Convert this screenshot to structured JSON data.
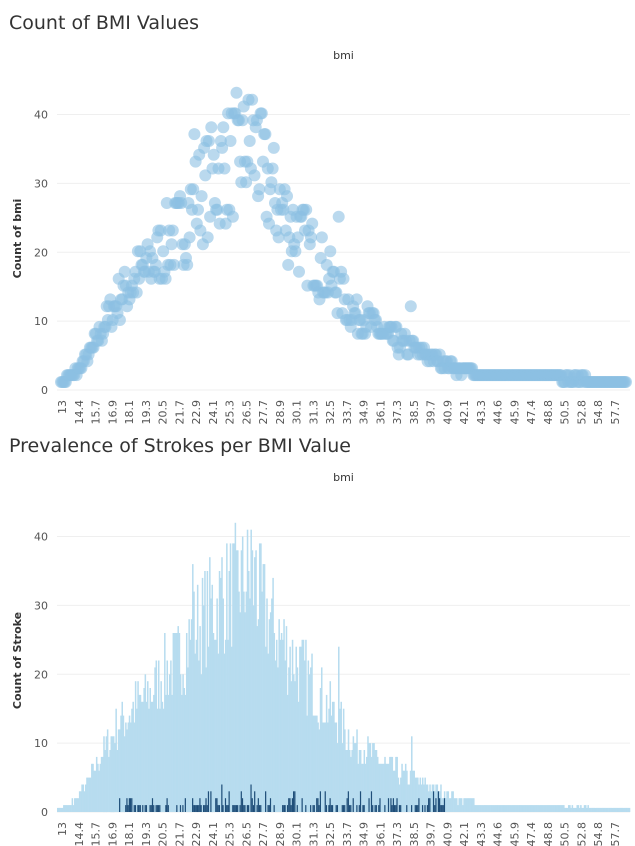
{
  "colors": {
    "dot": "#8cbfe3",
    "bar_no_stroke": "#b7dcef",
    "bar_stroke": "#1f4e79",
    "grid": "#efefef",
    "axis_text": "#555555"
  },
  "chart_data": [
    {
      "type": "scatter",
      "title": "Count of BMI Values",
      "header": "bmi",
      "ylabel": "Count of bmi",
      "ylim": [
        0,
        44
      ],
      "yticks": [
        0,
        10,
        20,
        30,
        40
      ],
      "x_tick_labels": [
        "13",
        "14.4",
        "15.7",
        "16.9",
        "18.1",
        "19.3",
        "20.5",
        "21.7",
        "22.9",
        "24.1",
        "25.3",
        "26.5",
        "27.7",
        "28.9",
        "30.1",
        "31.3",
        "32.5",
        "33.7",
        "34.9",
        "36.1",
        "37.3",
        "38.5",
        "39.7",
        "40.9",
        "42.1",
        "43.3",
        "44.6",
        "45.9",
        "47.4",
        "48.8",
        "50.5",
        "52.8",
        "54.8",
        "57.7"
      ],
      "x_range": [
        13.0,
        60.0
      ],
      "anchors": [
        [
          13.0,
          0
        ],
        [
          14.0,
          1
        ],
        [
          15.0,
          3
        ],
        [
          15.7,
          5
        ],
        [
          16.5,
          8
        ],
        [
          17.5,
          11
        ],
        [
          18.1,
          13
        ],
        [
          19.3,
          15
        ],
        [
          20.5,
          17
        ],
        [
          21.7,
          20
        ],
        [
          22.9,
          22
        ],
        [
          24.1,
          26
        ],
        [
          25.3,
          29
        ],
        [
          26.5,
          31
        ],
        [
          27.7,
          33
        ],
        [
          28.9,
          34
        ],
        [
          30.1,
          29
        ],
        [
          31.3,
          25
        ],
        [
          32.5,
          22
        ],
        [
          33.7,
          19
        ],
        [
          34.9,
          16
        ],
        [
          36.1,
          13
        ],
        [
          37.3,
          10
        ],
        [
          38.5,
          9
        ],
        [
          39.7,
          7
        ],
        [
          40.9,
          6
        ],
        [
          42.1,
          5
        ],
        [
          43.3,
          4
        ],
        [
          44.6,
          3
        ],
        [
          45.9,
          2
        ],
        [
          48.0,
          1.2
        ],
        [
          50.5,
          1
        ],
        [
          54.8,
          0.6
        ],
        [
          60.0,
          0.2
        ]
      ],
      "peaks": [
        [
          28.9,
          41
        ],
        [
          27.7,
          38
        ],
        [
          24.1,
          36
        ],
        [
          26.5,
          37
        ],
        [
          29.3,
          38
        ],
        [
          36.1,
          24
        ],
        [
          42.1,
          11
        ]
      ]
    },
    {
      "type": "bar",
      "stacked": true,
      "title": "Prevalence of Strokes per BMI Value",
      "header": "bmi",
      "ylabel": "Count of Stroke",
      "ylim": [
        0,
        44
      ],
      "yticks": [
        0,
        10,
        20,
        30,
        40
      ],
      "x_tick_labels": [
        "13",
        "14.4",
        "15.7",
        "16.9",
        "18.1",
        "19.3",
        "20.5",
        "21.7",
        "22.9",
        "24.1",
        "25.3",
        "26.5",
        "27.7",
        "28.9",
        "30.1",
        "31.3",
        "32.5",
        "33.7",
        "34.9",
        "36.1",
        "37.3",
        "38.5",
        "39.7",
        "40.9",
        "42.1",
        "43.3",
        "44.6",
        "45.9",
        "47.4",
        "48.8",
        "50.5",
        "52.8",
        "54.8",
        "57.7"
      ],
      "x_range": [
        13.0,
        60.0
      ],
      "series": [
        {
          "values_from": "chart_data.0"
        },
        {
          "peak_values": [
            [
              26.5,
              4
            ],
            [
              28.9,
              4
            ],
            [
              30.1,
              3
            ],
            [
              32.5,
              3
            ],
            [
              24.1,
              2
            ]
          ]
        }
      ]
    }
  ]
}
